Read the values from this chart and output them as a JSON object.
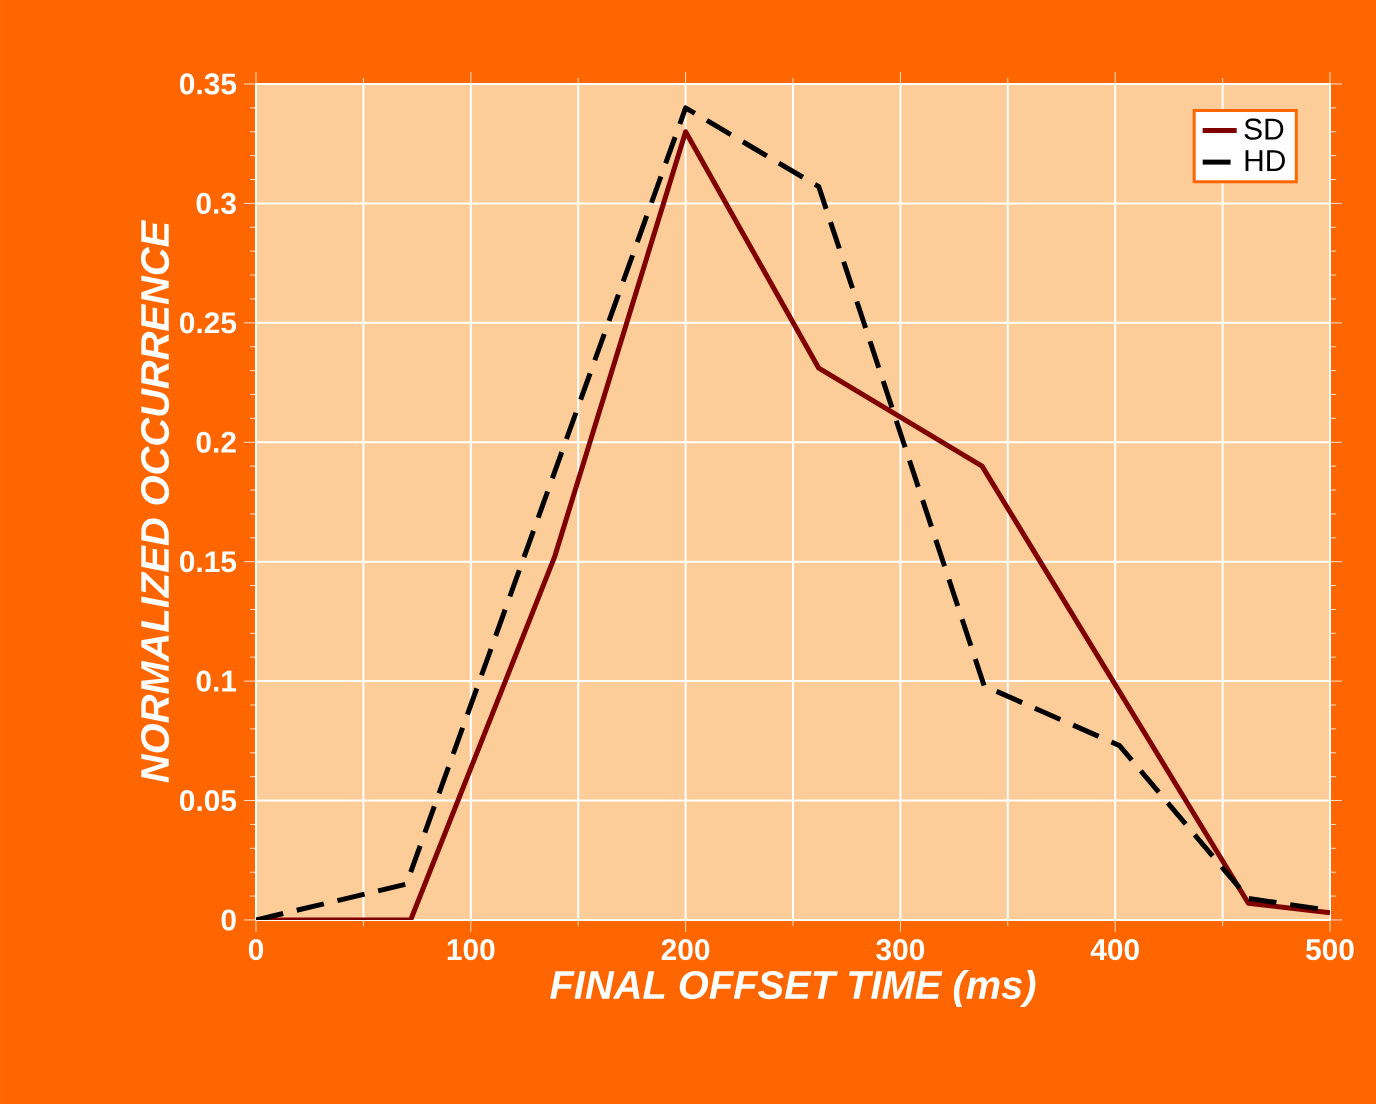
{
  "chart_data": {
    "type": "line",
    "xlabel": "FINAL OFFSET TIME (ms)",
    "ylabel": "NORMALIZED OCCURRENCE",
    "xlim": [
      0,
      500
    ],
    "xticks": [
      0,
      100,
      200,
      300,
      400,
      500
    ],
    "ylim": [
      0,
      0.35
    ],
    "yticks": [
      0,
      0.05,
      0.1,
      0.15,
      0.2,
      0.25,
      0.3,
      0.35
    ],
    "grid": true,
    "legend": "top right",
    "marker": "none",
    "series": [
      {
        "name": "SD",
        "color": "#800000",
        "line_style": "solid",
        "x": [
          0,
          72,
          139,
          200,
          262,
          338,
          462,
          500
        ],
        "values": [
          0,
          0,
          0.152,
          0.33,
          0.231,
          0.19,
          0.007,
          0.003
        ]
      },
      {
        "name": "HD",
        "color": "#000000",
        "line_style": "dashed",
        "x": [
          0,
          70,
          200,
          262,
          339,
          402,
          462,
          500
        ],
        "values": [
          0,
          0.015,
          0.34,
          0.307,
          0.098,
          0.073,
          0.009,
          0.004
        ]
      }
    ]
  }
}
